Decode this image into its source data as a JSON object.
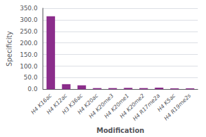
{
  "chart_data": {
    "type": "bar",
    "categories": [
      "H4 K16ac",
      "H4 K12ac",
      "H3 K36ac",
      "H4 K20ac",
      "H4 K20me3",
      "H4 K20me1",
      "H4 K20me2",
      "H4 R17me2a",
      "H4 K5ac",
      "H4 R19me2s"
    ],
    "values": [
      315,
      22,
      17,
      5,
      5,
      6,
      5,
      7,
      4,
      4
    ],
    "color": "#8B2D8B",
    "xlabel": "Modification",
    "ylabel": "Specificity",
    "ylim": [
      0,
      350
    ],
    "yticks": [
      {
        "value": 0,
        "label": "0.0"
      },
      {
        "value": 50,
        "label": "50.0"
      },
      {
        "value": 100,
        "label": "100.0"
      },
      {
        "value": 150,
        "label": "150.0"
      },
      {
        "value": 200,
        "label": "200.0"
      },
      {
        "value": 250,
        "label": "250.0"
      },
      {
        "value": 300,
        "label": "300.0"
      },
      {
        "value": 350,
        "label": "350.0"
      }
    ],
    "grid": true
  }
}
